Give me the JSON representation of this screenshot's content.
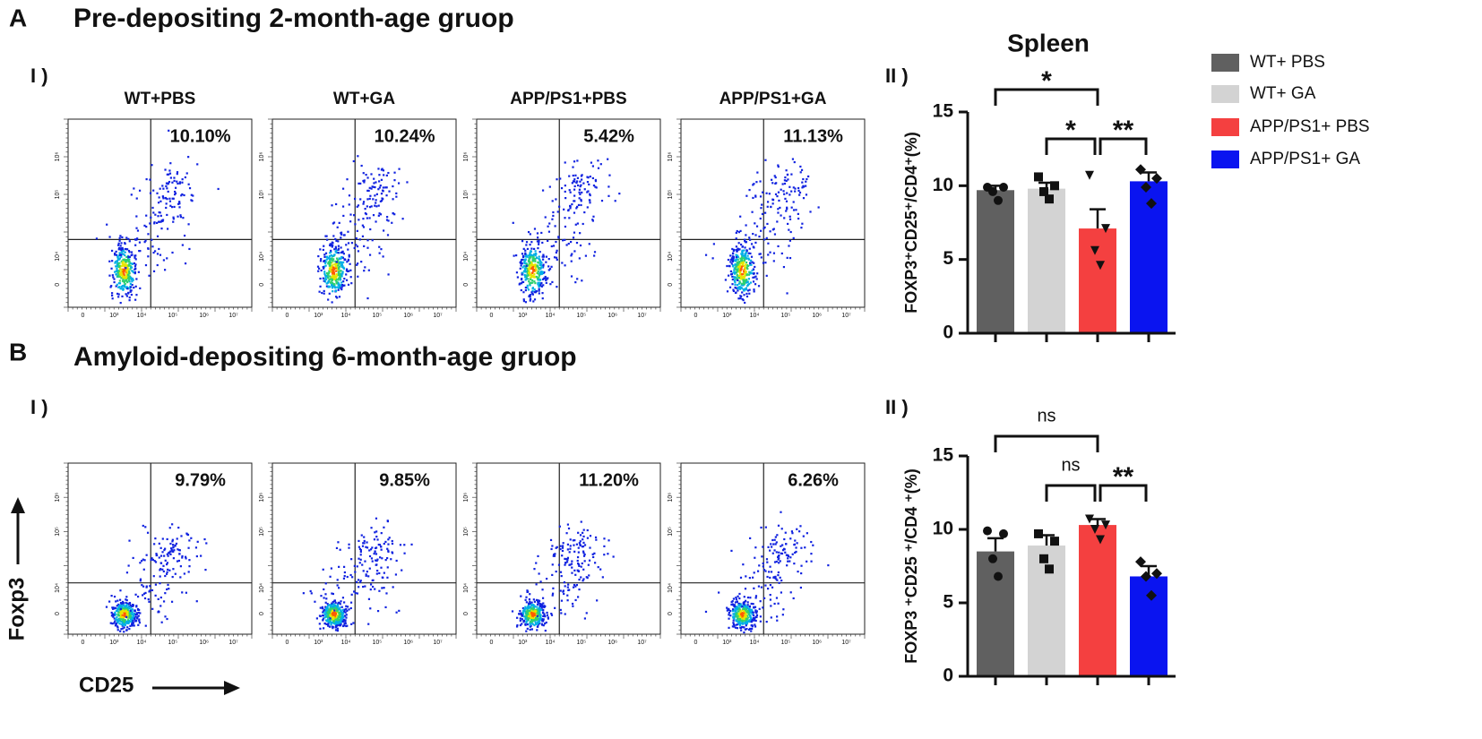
{
  "panels": [
    {
      "label": "A",
      "title": "Pre-depositing 2-month-age gruop",
      "flow_label": "I )",
      "bar_label": "II )",
      "flow_plots": [
        {
          "group": "WT+PBS",
          "percent": "10.10%"
        },
        {
          "group": "WT+GA",
          "percent": "10.24%"
        },
        {
          "group": "APP/PS1+PBS",
          "percent": "5.42%"
        },
        {
          "group": "APP/PS1+GA",
          "percent": "11.13%"
        }
      ]
    },
    {
      "label": "B",
      "title": "Amyloid-depositing 6-month-age gruop",
      "flow_label": "I )",
      "bar_label": "II )",
      "flow_plots": [
        {
          "percent": "9.79%"
        },
        {
          "percent": "9.85%"
        },
        {
          "percent": "11.20%"
        },
        {
          "percent": "6.26%"
        }
      ]
    }
  ],
  "flow_axes": {
    "x_label": "CD25",
    "y_label": "Foxp3",
    "x_ticks": [
      "0",
      "10³",
      "10⁴",
      "10⁵",
      "10⁶",
      "10⁷"
    ],
    "y_ticks": [
      "0",
      "10⁴",
      "10⁵",
      "10⁶"
    ]
  },
  "chart_data": [
    {
      "type": "bar",
      "title": "Spleen",
      "y_label": "FOXP3⁺CD25⁺/CD4⁺(%)",
      "categories": [
        null
      ],
      "ylim": [
        0,
        15
      ],
      "yticks": [
        0,
        5,
        10,
        15
      ],
      "series": [
        {
          "name": "WT+ PBS",
          "color": "#606060",
          "marker": "circle",
          "values": [
            9.7
          ],
          "errors": [
            0.3
          ],
          "points": [
            [
              9.9,
              9.9,
              9.6,
              9.0
            ]
          ]
        },
        {
          "name": "WT+ GA",
          "color": "#d3d3d3",
          "marker": "square",
          "values": [
            9.8
          ],
          "errors": [
            0.4
          ],
          "points": [
            [
              10.6,
              10.0,
              9.6,
              9.1
            ]
          ]
        },
        {
          "name": "APP/PS1+ PBS",
          "color": "#f44040",
          "marker": "triangle-down",
          "values": [
            7.1
          ],
          "errors": [
            1.3
          ],
          "points": [
            [
              10.7,
              7.1,
              5.6,
              4.6
            ]
          ]
        },
        {
          "name": "APP/PS1+ GA",
          "color": "#0a14f0",
          "marker": "diamond",
          "values": [
            10.3
          ],
          "errors": [
            0.6
          ],
          "points": [
            [
              11.1,
              10.5,
              9.9,
              8.8
            ]
          ]
        }
      ],
      "annotations": [
        {
          "text": "*",
          "from": 0,
          "to": 2
        },
        {
          "text": "*",
          "from": 1,
          "to": 2
        },
        {
          "text": "**",
          "from": 2,
          "to": 3
        }
      ]
    },
    {
      "type": "bar",
      "y_label": "FOXP3 ⁺CD25 ⁺/CD4 ⁺(%)",
      "categories": [
        null
      ],
      "ylim": [
        0,
        15
      ],
      "yticks": [
        0,
        5,
        10,
        15
      ],
      "series": [
        {
          "color": "#606060",
          "marker": "circle",
          "values": [
            8.5
          ],
          "errors": [
            0.9
          ],
          "points": [
            [
              9.9,
              9.7,
              8.0,
              6.8
            ]
          ]
        },
        {
          "color": "#d3d3d3",
          "marker": "square",
          "values": [
            8.9
          ],
          "errors": [
            0.7
          ],
          "points": [
            [
              9.7,
              9.2,
              8.0,
              7.3
            ]
          ]
        },
        {
          "color": "#f44040",
          "marker": "triangle-down",
          "values": [
            10.3
          ],
          "errors": [
            0.4
          ],
          "points": [
            [
              10.7,
              10.3,
              10.0,
              9.3
            ]
          ]
        },
        {
          "color": "#0a14f0",
          "marker": "diamond",
          "values": [
            6.8
          ],
          "errors": [
            0.7
          ],
          "points": [
            [
              7.8,
              7.0,
              6.8,
              5.5
            ]
          ]
        }
      ],
      "annotations": [
        {
          "text": "ns",
          "from": 0,
          "to": 2
        },
        {
          "text": "ns",
          "from": 1,
          "to": 2
        },
        {
          "text": "**",
          "from": 2,
          "to": 3
        }
      ]
    }
  ]
}
